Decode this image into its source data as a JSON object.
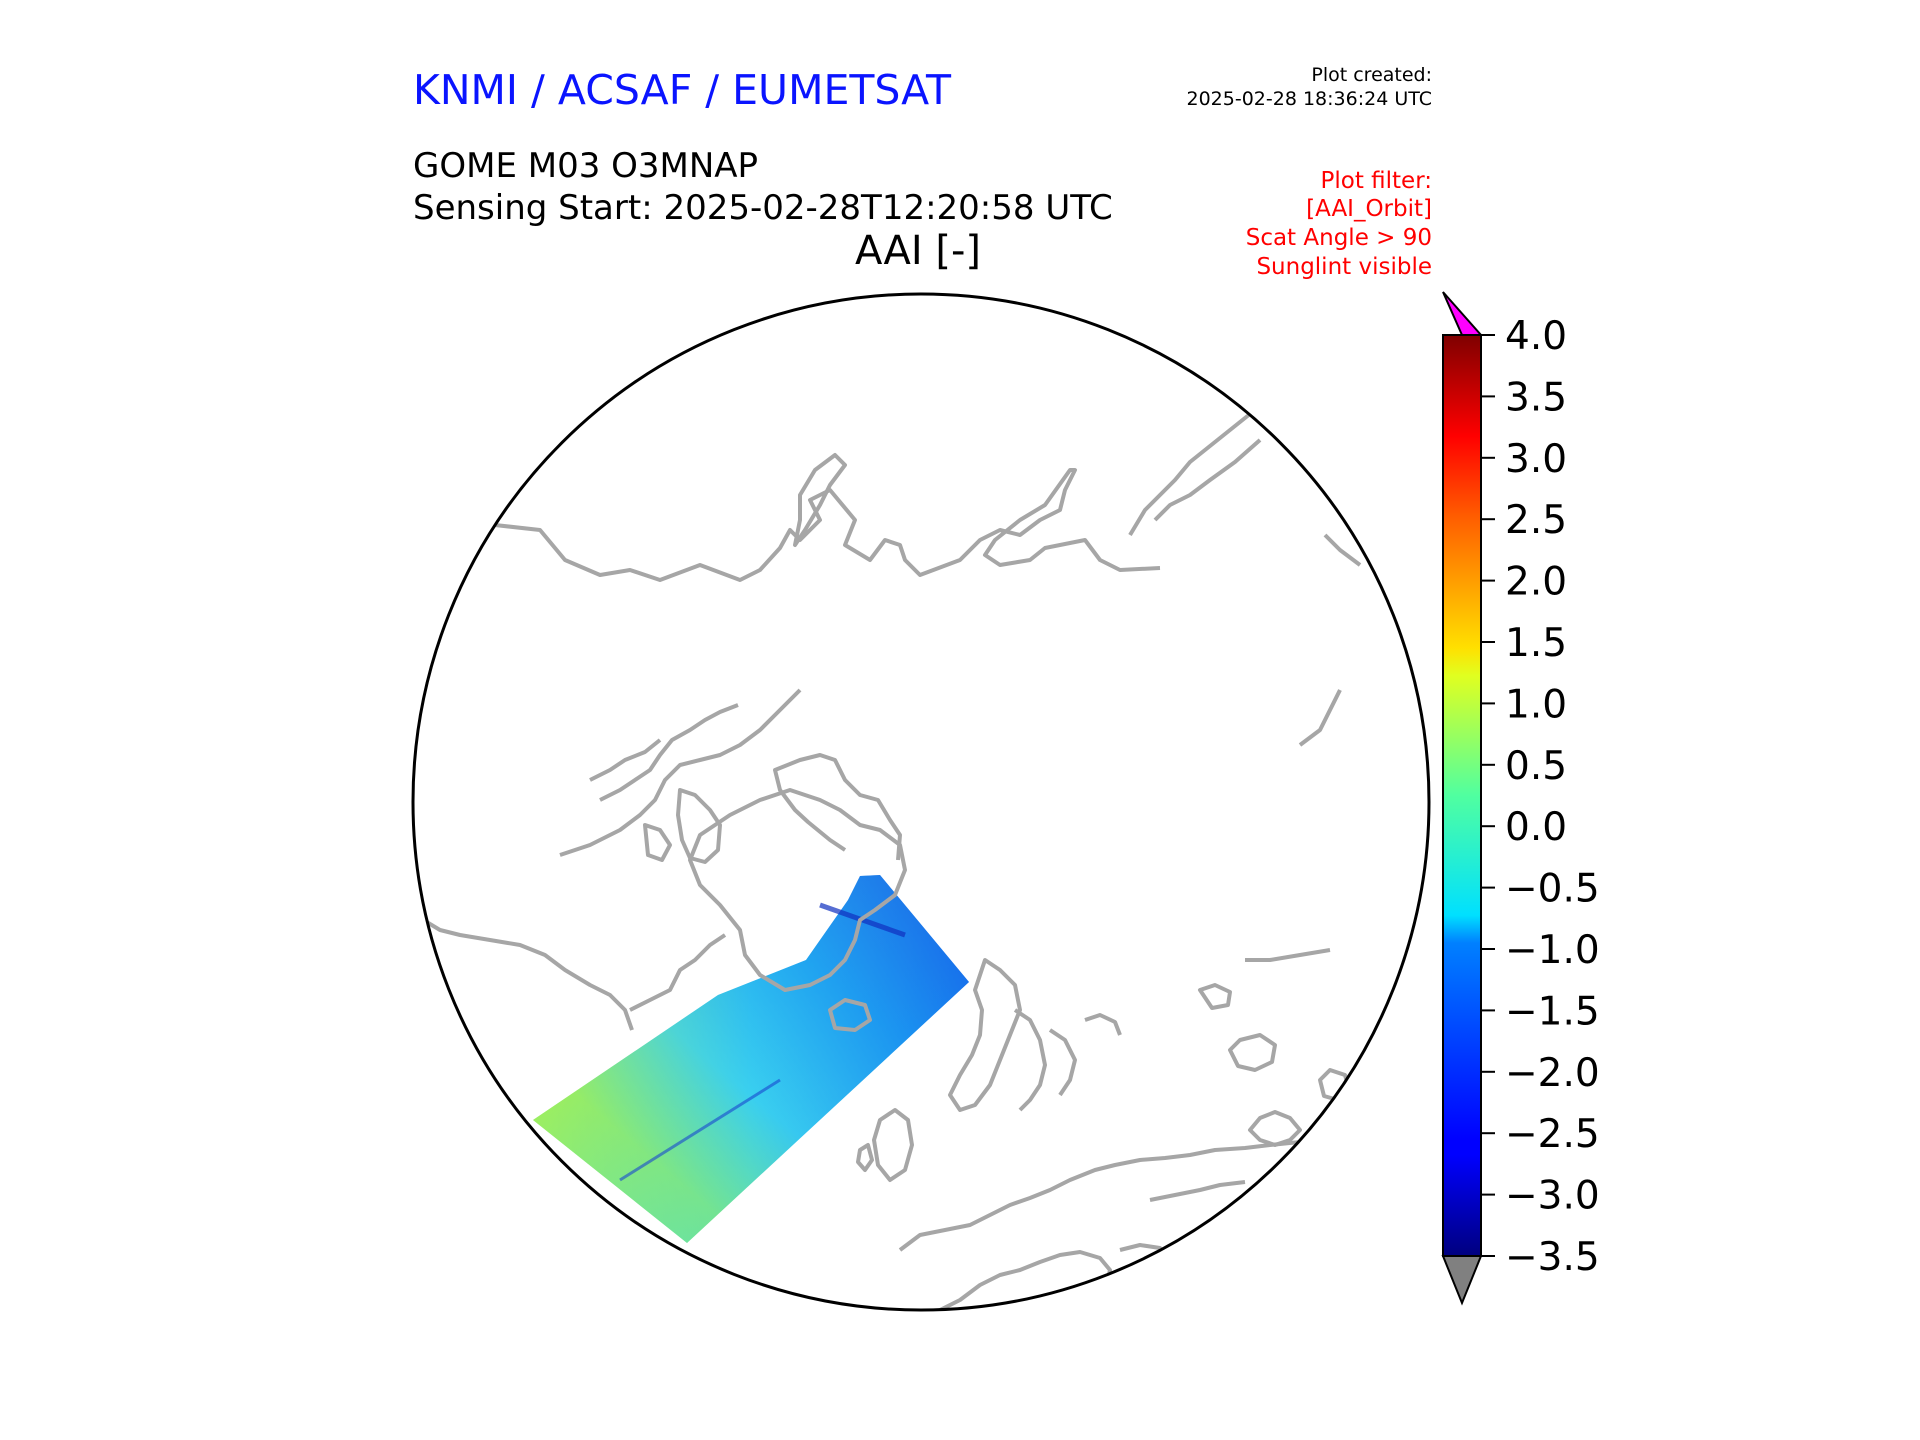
{
  "header": {
    "organization": "KNMI / ACSAF / EUMETSAT",
    "plot_created_label": "Plot created:",
    "plot_created_value": "2025-02-28 18:36:24 UTC",
    "product": "GOME M03 O3MNAP",
    "sensing_start": "Sensing Start: 2025-02-28T12:20:58 UTC",
    "map_title": "AAI [-]",
    "filters": [
      "Plot filter:",
      "[AAI_Orbit]",
      "Scat Angle > 90",
      "Sunglint visible"
    ]
  },
  "map": {
    "projection": "north-polar-stereographic",
    "coastline_color": "#a6a6a6",
    "border_color": "#000000",
    "swath": "GOME AAI orbit swath over Greenland and North Atlantic"
  },
  "colorbar": {
    "min": -3.5,
    "max": 4.0,
    "ticks": [
      "4.0",
      "3.5",
      "3.0",
      "2.5",
      "2.0",
      "1.5",
      "1.0",
      "0.5",
      "0.0",
      "−0.5",
      "−1.0",
      "−1.5",
      "−2.0",
      "−2.5",
      "−3.0",
      "−3.5"
    ],
    "over_color": "#ff00ff",
    "under_color": "#808080",
    "colormap": "jet"
  }
}
